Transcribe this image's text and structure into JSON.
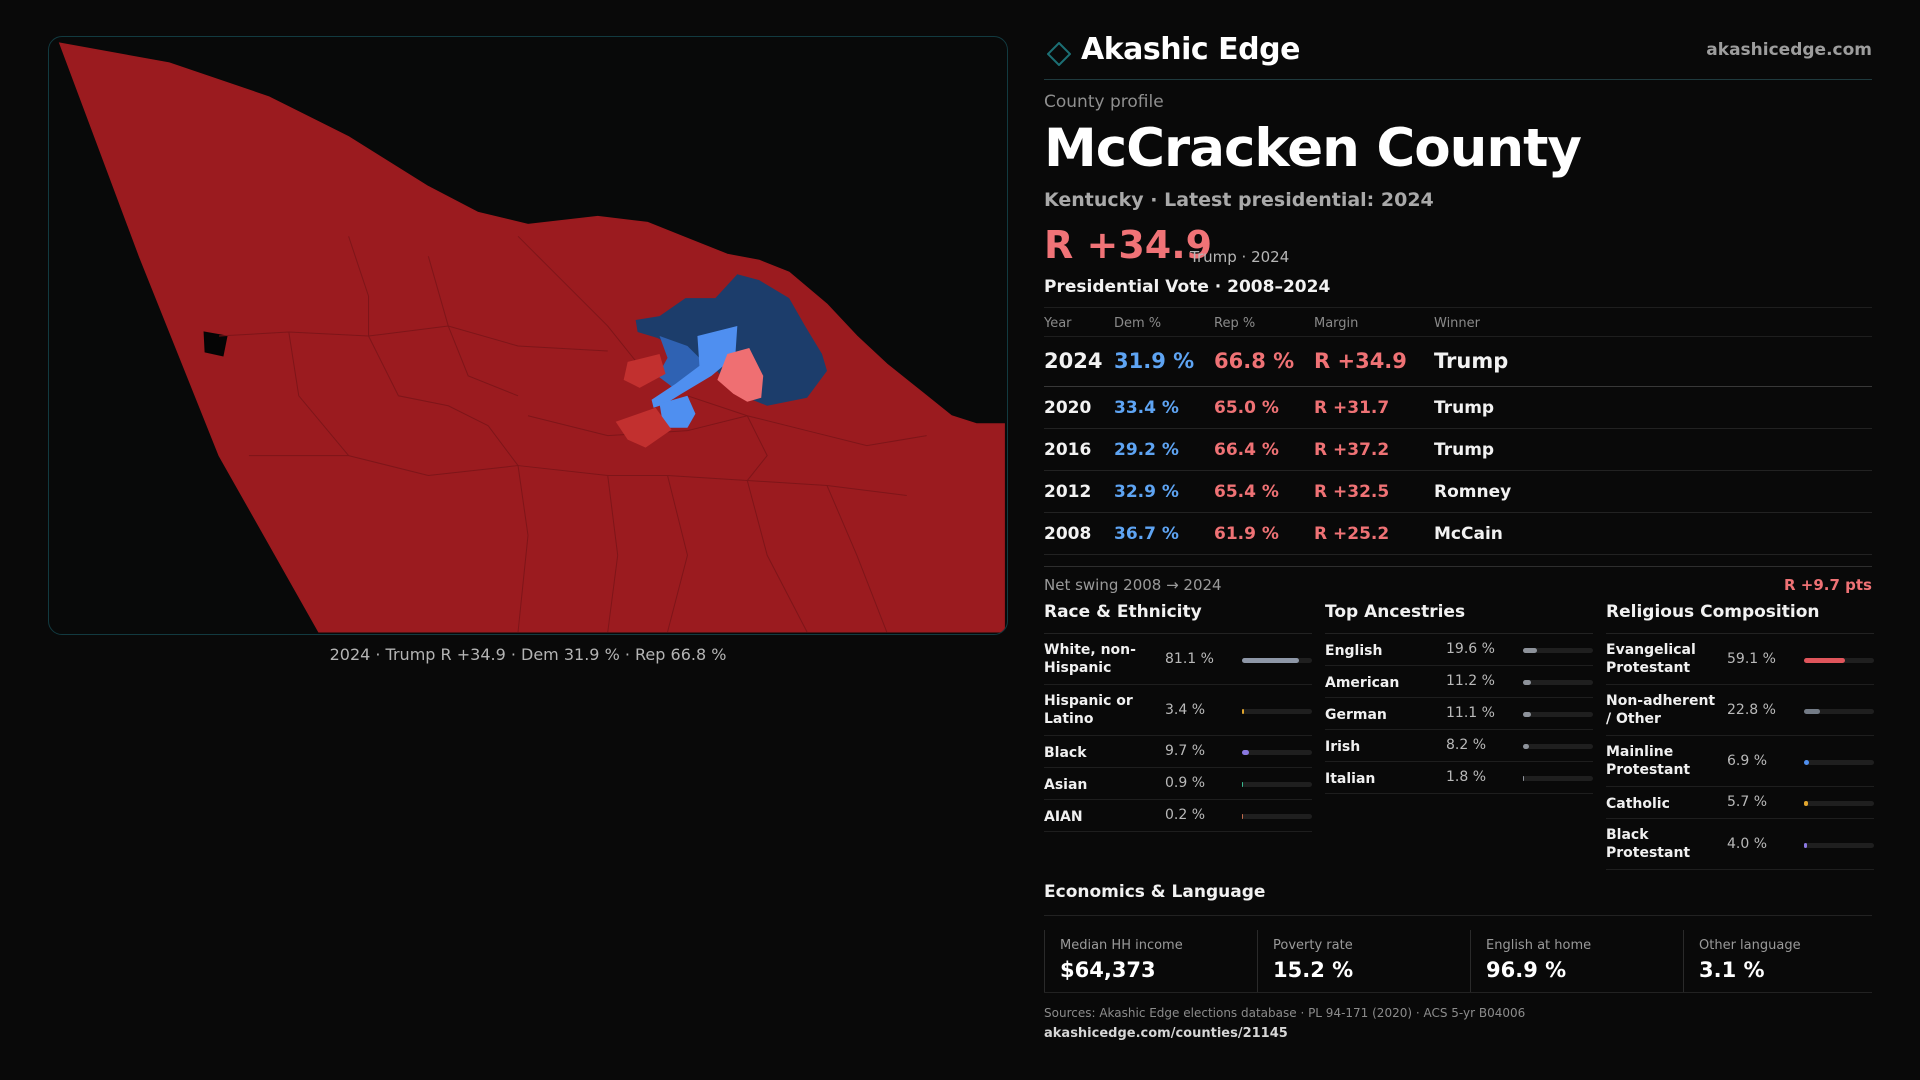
{
  "brand": {
    "name": "Akashic Edge",
    "url": "akashicedge.com"
  },
  "profile": {
    "kicker": "County profile",
    "county": "McCracken County",
    "subtitle": "Kentucky · Latest presidential: 2024",
    "margin": "R +34.9",
    "margin_note": "Trump · 2024"
  },
  "map": {
    "caption": "2024 · Trump R +34.9 · Dem 31.9 % · Rep 66.8 %",
    "colors": {
      "strong_r": "#9b1b1f",
      "lean_r": "#c2302f",
      "light_r": "#ef6f72",
      "strong_d": "#1c3d6b",
      "mid_d": "#2f62b3",
      "light_d": "#4f8ff0",
      "bg": "#080909"
    }
  },
  "vote": {
    "title": "Presidential Vote · 2008–2024",
    "headers": {
      "year": "Year",
      "dem": "Dem %",
      "rep": "Rep %",
      "margin": "Margin",
      "winner": "Winner"
    },
    "rows": [
      {
        "year": "2024",
        "dem": "31.9 %",
        "rep": "66.8 %",
        "margin": "R +34.9",
        "winner": "Trump"
      },
      {
        "year": "2020",
        "dem": "33.4 %",
        "rep": "65.0 %",
        "margin": "R +31.7",
        "winner": "Trump"
      },
      {
        "year": "2016",
        "dem": "29.2 %",
        "rep": "66.4 %",
        "margin": "R +37.2",
        "winner": "Trump"
      },
      {
        "year": "2012",
        "dem": "32.9 %",
        "rep": "65.4 %",
        "margin": "R +32.5",
        "winner": "Romney"
      },
      {
        "year": "2008",
        "dem": "36.7 %",
        "rep": "61.9 %",
        "margin": "R +25.2",
        "winner": "McCain"
      }
    ],
    "swing_label": "Net swing 2008 → 2024",
    "swing_value": "R +9.7 pts"
  },
  "race": {
    "title": "Race & Ethnicity",
    "rows": [
      {
        "label": "White, non-Hispanic",
        "value": "81.1 %",
        "pct": 81.1,
        "color": "#8e97a7"
      },
      {
        "label": "Hispanic or Latino",
        "value": "3.4 %",
        "pct": 3.4,
        "color": "#e0a52d"
      },
      {
        "label": "Black",
        "value": "9.7 %",
        "pct": 9.7,
        "color": "#8a78e0"
      },
      {
        "label": "Asian",
        "value": "0.9 %",
        "pct": 0.9,
        "color": "#38b98f"
      },
      {
        "label": "AIAN",
        "value": "0.2 %",
        "pct": 0.2,
        "color": "#c06a4c"
      }
    ]
  },
  "ancestry": {
    "title": "Top Ancestries",
    "rows": [
      {
        "label": "English",
        "value": "19.6 %",
        "pct": 19.6,
        "color": "#8d929a"
      },
      {
        "label": "American",
        "value": "11.2 %",
        "pct": 11.2,
        "color": "#8d929a"
      },
      {
        "label": "German",
        "value": "11.1 %",
        "pct": 11.1,
        "color": "#8d929a"
      },
      {
        "label": "Irish",
        "value": "8.2 %",
        "pct": 8.2,
        "color": "#8d929a"
      },
      {
        "label": "Italian",
        "value": "1.8 %",
        "pct": 1.8,
        "color": "#8d929a"
      }
    ]
  },
  "religion": {
    "title": "Religious Composition",
    "rows": [
      {
        "label": "Evangelical Protestant",
        "value": "59.1 %",
        "pct": 59.1,
        "color": "#e0555b"
      },
      {
        "label": "Non-adherent / Other",
        "value": "22.8 %",
        "pct": 22.8,
        "color": "#737b86"
      },
      {
        "label": "Mainline Protestant",
        "value": "6.9 %",
        "pct": 6.9,
        "color": "#4f8ff0"
      },
      {
        "label": "Catholic",
        "value": "5.7 %",
        "pct": 5.7,
        "color": "#e0a52d"
      },
      {
        "label": "Black Protestant",
        "value": "4.0 %",
        "pct": 4.0,
        "color": "#8a78e0"
      }
    ]
  },
  "economics": {
    "title": "Economics & Language",
    "items": [
      {
        "label": "Median HH income",
        "value": "$64,373"
      },
      {
        "label": "Poverty rate",
        "value": "15.2 %"
      },
      {
        "label": "English at home",
        "value": "96.9 %"
      },
      {
        "label": "Other language",
        "value": "3.1 %"
      }
    ]
  },
  "footer": {
    "sources": "Sources: Akashic Edge elections database · PL 94-171 (2020) · ACS 5-yr B04006",
    "url": "akashicedge.com/counties/21145"
  }
}
